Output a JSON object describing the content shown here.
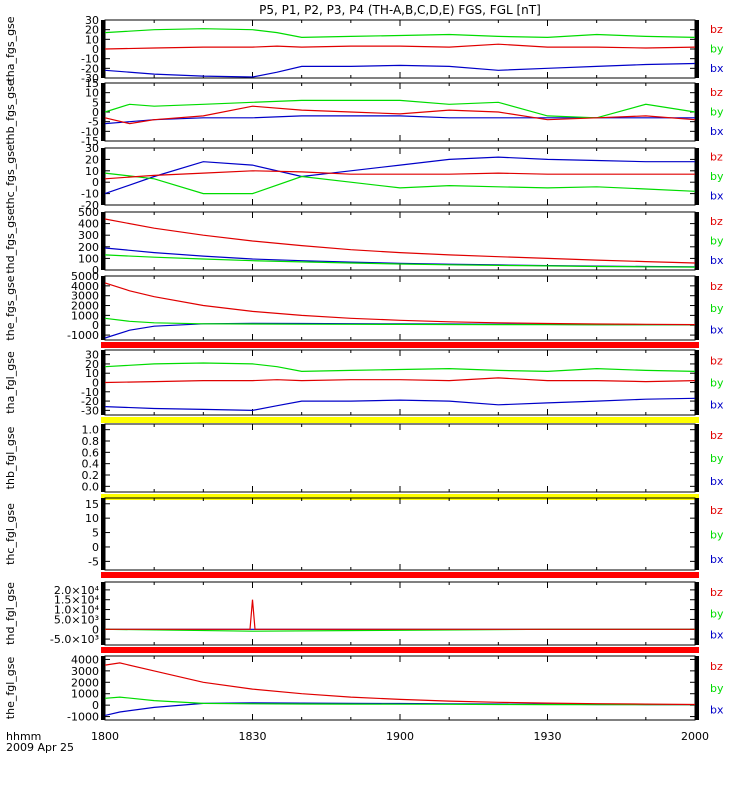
{
  "title": "P5, P1, P2, P3, P4 (TH-A,B,C,D,E) FGS, FGL [nT]",
  "time_axis": {
    "label_line1": "hhmm",
    "label_line2": "2009 Apr 25",
    "ticks": [
      "1800",
      "1830",
      "1900",
      "1930",
      "2000"
    ]
  },
  "colors": {
    "bx": "#0000c8",
    "by": "#00dc00",
    "bz": "#e00000",
    "bar_red": "#ff0000",
    "bar_yellow": "#ffff00",
    "frame": "#000000"
  },
  "legend_labels": [
    "bz",
    "by",
    "bx"
  ],
  "chart_data": [
    {
      "type": "line",
      "ylabel": "tha_fgs_gse",
      "ylim": [
        -30,
        30
      ],
      "yticks": [
        "30",
        "20",
        "10",
        "0",
        "-10",
        "-20",
        "-30"
      ],
      "series": [
        {
          "name": "bz",
          "x": [
            "1800",
            "1810",
            "1820",
            "1830",
            "1835",
            "1840",
            "1850",
            "1900",
            "1910",
            "1920",
            "1930",
            "1940",
            "1950",
            "2000"
          ],
          "y": [
            0,
            1,
            2,
            2,
            3,
            2,
            3,
            3,
            2,
            5,
            2,
            2,
            1,
            2
          ]
        },
        {
          "name": "by",
          "x": [
            "1800",
            "1810",
            "1820",
            "1830",
            "1835",
            "1840",
            "1850",
            "1900",
            "1910",
            "1920",
            "1930",
            "1940",
            "1950",
            "2000"
          ],
          "y": [
            17,
            20,
            21,
            20,
            17,
            12,
            13,
            14,
            15,
            13,
            12,
            15,
            13,
            12
          ]
        },
        {
          "name": "bx",
          "x": [
            "1800",
            "1810",
            "1820",
            "1830",
            "1835",
            "1840",
            "1850",
            "1900",
            "1910",
            "1920",
            "1930",
            "1940",
            "1950",
            "2000"
          ],
          "y": [
            -22,
            -26,
            -28,
            -29,
            -24,
            -18,
            -18,
            -17,
            -18,
            -22,
            -20,
            -18,
            -16,
            -15
          ]
        }
      ],
      "bar": "none"
    },
    {
      "type": "line",
      "ylabel": "thb_fgs_gse",
      "ylim": [
        -15,
        15
      ],
      "yticks": [
        "15",
        "10",
        "5",
        "0",
        "-5",
        "-10",
        "-15"
      ],
      "series": [
        {
          "name": "bz",
          "x": [
            "1800",
            "1805",
            "1810",
            "1820",
            "1830",
            "1840",
            "1850",
            "1900",
            "1910",
            "1920",
            "1930",
            "1940",
            "1950",
            "2000"
          ],
          "y": [
            -3,
            -6,
            -4,
            -2,
            3,
            1,
            0,
            -1,
            1,
            0,
            -4,
            -3,
            -2,
            -4
          ]
        },
        {
          "name": "by",
          "x": [
            "1800",
            "1805",
            "1810",
            "1820",
            "1830",
            "1840",
            "1850",
            "1900",
            "1910",
            "1920",
            "1930",
            "1940",
            "1950",
            "2000"
          ],
          "y": [
            0,
            4,
            3,
            4,
            5,
            6,
            6,
            6,
            4,
            5,
            -2,
            -3,
            4,
            0
          ]
        },
        {
          "name": "bx",
          "x": [
            "1800",
            "1805",
            "1810",
            "1820",
            "1830",
            "1840",
            "1850",
            "1900",
            "1910",
            "1920",
            "1930",
            "1940",
            "1950",
            "2000"
          ],
          "y": [
            -6,
            -5,
            -4,
            -3,
            -3,
            -2,
            -2,
            -2,
            -3,
            -3,
            -3,
            -3,
            -3,
            -3
          ]
        }
      ],
      "bar": "none"
    },
    {
      "type": "line",
      "ylabel": "thc_fgs_gse",
      "ylim": [
        -20,
        30
      ],
      "yticks": [
        "30",
        "20",
        "10",
        "0",
        "-10",
        "-20"
      ],
      "series": [
        {
          "name": "bz",
          "x": [
            "1800",
            "1810",
            "1820",
            "1830",
            "1840",
            "1850",
            "1900",
            "1910",
            "1920",
            "1930",
            "1940",
            "1950",
            "2000"
          ],
          "y": [
            3,
            6,
            8,
            10,
            9,
            7,
            7,
            7,
            8,
            7,
            7,
            7,
            7
          ]
        },
        {
          "name": "by",
          "x": [
            "1800",
            "1810",
            "1820",
            "1830",
            "1840",
            "1850",
            "1900",
            "1910",
            "1920",
            "1930",
            "1940",
            "1950",
            "2000"
          ],
          "y": [
            8,
            3,
            -10,
            -10,
            5,
            0,
            -5,
            -3,
            -4,
            -5,
            -4,
            -6,
            -8
          ]
        },
        {
          "name": "bx",
          "x": [
            "1800",
            "1810",
            "1820",
            "1830",
            "1840",
            "1850",
            "1900",
            "1910",
            "1920",
            "1930",
            "1940",
            "1950",
            "2000"
          ],
          "y": [
            -10,
            5,
            18,
            15,
            5,
            10,
            15,
            20,
            22,
            20,
            19,
            18,
            18
          ]
        }
      ],
      "bar": "none"
    },
    {
      "type": "line",
      "ylabel": "thd_fgs_gse",
      "ylim": [
        0,
        500
      ],
      "yticks": [
        "500",
        "400",
        "300",
        "200",
        "100",
        "0"
      ],
      "series": [
        {
          "name": "bz",
          "x": [
            "1800",
            "1810",
            "1820",
            "1830",
            "1840",
            "1850",
            "1900",
            "1910",
            "1920",
            "1930",
            "1940",
            "1950",
            "2000"
          ],
          "y": [
            440,
            360,
            300,
            250,
            210,
            175,
            150,
            130,
            115,
            100,
            85,
            72,
            60
          ]
        },
        {
          "name": "by",
          "x": [
            "1800",
            "1810",
            "1820",
            "1830",
            "1840",
            "1850",
            "1900",
            "1910",
            "1920",
            "1930",
            "1940",
            "1950",
            "2000"
          ],
          "y": [
            130,
            110,
            95,
            80,
            70,
            60,
            52,
            45,
            40,
            35,
            30,
            28,
            25
          ]
        },
        {
          "name": "bx",
          "x": [
            "1800",
            "1810",
            "1820",
            "1830",
            "1840",
            "1850",
            "1900",
            "1910",
            "1920",
            "1930",
            "1940",
            "1950",
            "2000"
          ],
          "y": [
            190,
            150,
            120,
            95,
            80,
            68,
            58,
            50,
            44,
            38,
            34,
            30,
            28
          ]
        }
      ],
      "bar": "none"
    },
    {
      "type": "line",
      "ylabel": "the_fgs_gse",
      "ylim": [
        -1500,
        5000
      ],
      "yticks": [
        "5000",
        "4000",
        "3000",
        "2000",
        "1000",
        "0",
        "-1000"
      ],
      "series": [
        {
          "name": "bz",
          "x": [
            "1800",
            "1805",
            "1810",
            "1820",
            "1830",
            "1840",
            "1850",
            "1900",
            "1910",
            "1920",
            "1930",
            "1940",
            "1950",
            "2000"
          ],
          "y": [
            4300,
            3500,
            2900,
            2000,
            1400,
            1000,
            700,
            500,
            350,
            250,
            180,
            130,
            90,
            60
          ]
        },
        {
          "name": "by",
          "x": [
            "1800",
            "1805",
            "1810",
            "1820",
            "1830",
            "1840",
            "1850",
            "1900",
            "1910",
            "1920",
            "1930",
            "1940",
            "1950",
            "2000"
          ],
          "y": [
            700,
            400,
            250,
            150,
            120,
            100,
            90,
            80,
            70,
            60,
            50,
            40,
            40,
            40
          ]
        },
        {
          "name": "bx",
          "x": [
            "1800",
            "1805",
            "1810",
            "1820",
            "1830",
            "1840",
            "1850",
            "1900",
            "1910",
            "1920",
            "1930",
            "1940",
            "1950",
            "2000"
          ],
          "y": [
            -1300,
            -500,
            -100,
            150,
            200,
            180,
            160,
            140,
            120,
            100,
            80,
            60,
            50,
            40
          ]
        }
      ],
      "bar": "red"
    },
    {
      "type": "line",
      "ylabel": "tha_fgl_gse",
      "ylim": [
        -35,
        35
      ],
      "yticks": [
        "30",
        "20",
        "10",
        "0",
        "-10",
        "-20",
        "-30"
      ],
      "series": [
        {
          "name": "bz",
          "x": [
            "1800",
            "1810",
            "1820",
            "1830",
            "1835",
            "1840",
            "1850",
            "1900",
            "1910",
            "1920",
            "1930",
            "1940",
            "1950",
            "2000"
          ],
          "y": [
            0,
            1,
            2,
            2,
            3,
            2,
            3,
            3,
            2,
            5,
            2,
            2,
            1,
            2
          ]
        },
        {
          "name": "by",
          "x": [
            "1800",
            "1810",
            "1820",
            "1830",
            "1835",
            "1840",
            "1850",
            "1900",
            "1910",
            "1920",
            "1930",
            "1940",
            "1950",
            "2000"
          ],
          "y": [
            17,
            20,
            21,
            20,
            17,
            12,
            13,
            14,
            15,
            13,
            12,
            15,
            13,
            12
          ]
        },
        {
          "name": "bx",
          "x": [
            "1800",
            "1810",
            "1820",
            "1830",
            "1835",
            "1840",
            "1850",
            "1900",
            "1910",
            "1920",
            "1930",
            "1940",
            "1950",
            "2000"
          ],
          "y": [
            -26,
            -28,
            -29,
            -30,
            -25,
            -20,
            -20,
            -19,
            -20,
            -24,
            -22,
            -20,
            -18,
            -17
          ]
        }
      ],
      "bar": "yellow"
    },
    {
      "type": "line",
      "ylabel": "thb_fgl_gse",
      "ylim": [
        -0.1,
        1.1
      ],
      "yticks": [
        "1.0",
        "0.8",
        "0.6",
        "0.4",
        "0.2",
        "0.0"
      ],
      "series": [],
      "bar": "yellow"
    },
    {
      "type": "line",
      "ylabel": "thc_fgl_gse",
      "ylim": [
        -8,
        17
      ],
      "yticks": [
        "15",
        "10",
        "5",
        "0",
        "-5"
      ],
      "series": [],
      "bar": "red"
    },
    {
      "type": "line",
      "ylabel": "thd_fgl_gse",
      "ylim": [
        -8000,
        24000
      ],
      "yticks": [
        "2.0×10⁴",
        "1.5×10⁴",
        "1.0×10⁴",
        "5.0×10³",
        "0",
        "-5.0×10³"
      ],
      "series": [
        {
          "name": "bz",
          "x": [
            "1800",
            "1829.5",
            "1830",
            "1830.5",
            "1930",
            "2000"
          ],
          "y": [
            0,
            0,
            15000,
            0,
            0,
            0
          ]
        },
        {
          "name": "by",
          "x": [
            "1800",
            "1830",
            "1930",
            "2000"
          ],
          "y": [
            0,
            -1000,
            0,
            0
          ]
        },
        {
          "name": "bx",
          "x": [
            "1800",
            "2000"
          ],
          "y": [
            0,
            0
          ]
        }
      ],
      "bar": "red"
    },
    {
      "type": "line",
      "ylabel": "the_fgl_gse",
      "ylim": [
        -1300,
        4300
      ],
      "yticks": [
        "4000",
        "3000",
        "2000",
        "1000",
        "0",
        "-1000"
      ],
      "series": [
        {
          "name": "bz",
          "x": [
            "1800",
            "1803",
            "1810",
            "1820",
            "1830",
            "1840",
            "1850",
            "1900",
            "1910",
            "1920",
            "1930",
            "1940",
            "1950",
            "2000"
          ],
          "y": [
            3500,
            3700,
            3000,
            2000,
            1400,
            1000,
            700,
            500,
            350,
            250,
            180,
            130,
            90,
            60
          ]
        },
        {
          "name": "by",
          "x": [
            "1800",
            "1803",
            "1810",
            "1820",
            "1830",
            "1840",
            "1850",
            "1900",
            "1910",
            "1920",
            "1930",
            "1940",
            "1950",
            "2000"
          ],
          "y": [
            600,
            700,
            400,
            150,
            120,
            100,
            90,
            80,
            70,
            60,
            50,
            40,
            40,
            40
          ]
        },
        {
          "name": "bx",
          "x": [
            "1800",
            "1803",
            "1810",
            "1820",
            "1830",
            "1840",
            "1850",
            "1900",
            "1910",
            "1920",
            "1930",
            "1940",
            "1950",
            "2000"
          ],
          "y": [
            -900,
            -600,
            -200,
            150,
            200,
            180,
            160,
            140,
            120,
            100,
            80,
            60,
            50,
            40
          ]
        }
      ],
      "bar": "none"
    }
  ]
}
